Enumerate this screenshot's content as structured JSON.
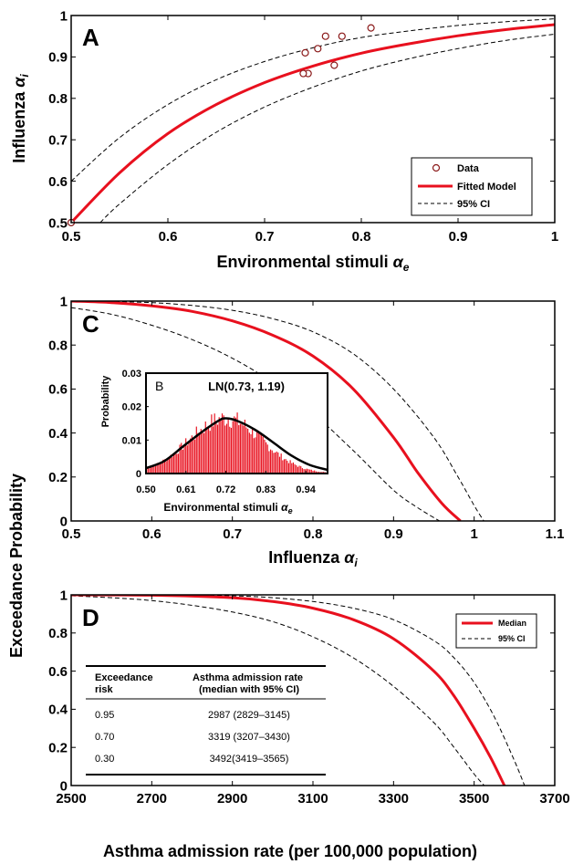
{
  "chart_data": [
    {
      "panel": "A",
      "type": "line",
      "xlabel": "Environmental stimuli",
      "xlabel_symbol": "α",
      "xlabel_sub": "e",
      "ylabel": "Influenza",
      "ylabel_symbol": "α",
      "ylabel_sub": "i",
      "xlim": [
        0.5,
        1
      ],
      "ylim": [
        0.5,
        1
      ],
      "xticks": [
        0.5,
        0.6,
        0.7,
        0.8,
        0.9,
        1
      ],
      "yticks": [
        0.5,
        0.6,
        0.7,
        0.8,
        0.9,
        1
      ],
      "xtick_labels": [
        "0.5",
        "0.6",
        "0.7",
        "0.8",
        "0.9",
        "1"
      ],
      "ytick_labels": [
        "0.5",
        "0.6",
        "0.7",
        "0.8",
        "0.9",
        "1"
      ],
      "legend": [
        "Data",
        "Fitted Model",
        "95% CI"
      ],
      "legend_position": "bottom-right",
      "scatter": {
        "name": "Data",
        "x": [
          0.5,
          0.742,
          0.745,
          0.755,
          0.763,
          0.74,
          0.772,
          0.78,
          0.81
        ],
        "y": [
          0.5,
          0.91,
          0.86,
          0.92,
          0.95,
          0.86,
          0.88,
          0.95,
          0.97
        ]
      },
      "series": [
        {
          "name": "Fitted Model",
          "style": "solid-red",
          "x": [
            0.5,
            0.55,
            0.6,
            0.65,
            0.7,
            0.75,
            0.8,
            0.85,
            0.9,
            0.95,
            1.0
          ],
          "y": [
            0.5,
            0.62,
            0.715,
            0.785,
            0.838,
            0.878,
            0.909,
            0.932,
            0.951,
            0.966,
            0.978
          ]
        },
        {
          "name": "95% CI upper",
          "style": "dashed-black",
          "x": [
            0.5,
            0.55,
            0.6,
            0.65,
            0.7,
            0.75,
            0.8,
            0.85,
            0.9,
            0.95,
            1.0
          ],
          "y": [
            0.6,
            0.705,
            0.785,
            0.845,
            0.889,
            0.922,
            0.947,
            0.963,
            0.976,
            0.985,
            0.992
          ]
        },
        {
          "name": "95% CI lower",
          "style": "dashed-black",
          "x": [
            0.53,
            0.55,
            0.6,
            0.65,
            0.7,
            0.75,
            0.8,
            0.85,
            0.9,
            0.95,
            1.0
          ],
          "y": [
            0.5,
            0.545,
            0.64,
            0.718,
            0.779,
            0.827,
            0.866,
            0.896,
            0.92,
            0.94,
            0.955
          ]
        }
      ]
    },
    {
      "panel": "C",
      "type": "line",
      "xlabel": "Influenza",
      "xlabel_symbol": "α",
      "xlabel_sub": "i",
      "ylabel": "Exceedance Probability",
      "xlim": [
        0.5,
        1.1
      ],
      "ylim": [
        0,
        1
      ],
      "xticks": [
        0.5,
        0.6,
        0.7,
        0.8,
        0.9,
        1.0,
        1.1
      ],
      "xtick_labels": [
        "0.5",
        "0.6",
        "0.7",
        "0.8",
        "0.9",
        "1",
        "1.1"
      ],
      "yticks": [
        0,
        0.2,
        0.4,
        0.6,
        0.8,
        1
      ],
      "ytick_labels": [
        "0",
        "0.2",
        "0.4",
        "0.6",
        "0.8",
        "1"
      ],
      "series": [
        {
          "name": "Median",
          "style": "solid-red",
          "x": [
            0.5,
            0.55,
            0.6,
            0.65,
            0.7,
            0.75,
            0.8,
            0.85,
            0.9,
            0.93,
            0.96,
            0.983
          ],
          "y": [
            1.0,
            0.993,
            0.978,
            0.953,
            0.91,
            0.845,
            0.75,
            0.6,
            0.38,
            0.22,
            0.08,
            0.0
          ]
        },
        {
          "name": "95% CI upper",
          "style": "dashed-black",
          "x": [
            0.5,
            0.55,
            0.6,
            0.65,
            0.7,
            0.75,
            0.8,
            0.85,
            0.9,
            0.95,
            0.98,
            1.0,
            1.012
          ],
          "y": [
            1.0,
            0.998,
            0.993,
            0.98,
            0.958,
            0.92,
            0.86,
            0.76,
            0.6,
            0.38,
            0.2,
            0.07,
            0.0
          ]
        },
        {
          "name": "95% CI lower",
          "style": "dashed-black",
          "x": [
            0.5,
            0.55,
            0.6,
            0.65,
            0.7,
            0.75,
            0.8,
            0.85,
            0.9,
            0.93,
            0.957
          ],
          "y": [
            0.97,
            0.94,
            0.89,
            0.825,
            0.74,
            0.63,
            0.49,
            0.32,
            0.14,
            0.06,
            0.0
          ]
        }
      ]
    },
    {
      "panel": "B",
      "type": "bar",
      "inset": true,
      "label": "LN(0.73, 1.19)",
      "xlabel": "Environmental stimuli",
      "xlabel_symbol": "α",
      "xlabel_sub": "e",
      "ylabel": "Probability",
      "xlim": [
        0.5,
        1.0
      ],
      "ylim": [
        0,
        0.03
      ],
      "xtick_labels": [
        "0.50",
        "0.61",
        "0.72",
        "0.83",
        "0.94"
      ],
      "xticks": [
        0.5,
        0.61,
        0.72,
        0.83,
        0.94
      ],
      "yticks": [
        0,
        0.01,
        0.02,
        0.03
      ],
      "ytick_labels": [
        "0",
        "0.01",
        "0.02",
        "0.03"
      ],
      "histogram_center": 0.72,
      "histogram_peak": 0.0165,
      "histogram_sd": 0.1,
      "curve": {
        "name": "LN(0.73, 1.19)",
        "x": [
          0.5,
          0.55,
          0.6,
          0.65,
          0.7,
          0.72,
          0.75,
          0.8,
          0.85,
          0.9,
          0.95,
          1.0
        ],
        "y": [
          0.0016,
          0.0037,
          0.0079,
          0.0121,
          0.0158,
          0.0165,
          0.0158,
          0.0131,
          0.0093,
          0.0054,
          0.0026,
          0.0011
        ]
      }
    },
    {
      "panel": "D",
      "type": "line",
      "xlabel": "Asthma admission rate (per 100,000 population)",
      "ylabel": "Exceedance Probability",
      "xlim": [
        2500,
        3700
      ],
      "ylim": [
        0,
        1
      ],
      "xticks": [
        2500,
        2700,
        2900,
        3100,
        3300,
        3500,
        3700
      ],
      "xtick_labels": [
        "2500",
        "2700",
        "2900",
        "3100",
        "3300",
        "3500",
        "3700"
      ],
      "yticks": [
        0,
        0.2,
        0.4,
        0.6,
        0.8,
        1
      ],
      "ytick_labels": [
        "0",
        "0.2",
        "0.4",
        "0.6",
        "0.8",
        "1"
      ],
      "legend": [
        "Median",
        "95% CI"
      ],
      "legend_position": "top-right",
      "series": [
        {
          "name": "Median",
          "style": "solid-red",
          "x": [
            2500,
            2700,
            2900,
            3000,
            3100,
            3200,
            3300,
            3400,
            3450,
            3500,
            3540,
            3575
          ],
          "y": [
            1.0,
            0.998,
            0.985,
            0.965,
            0.93,
            0.87,
            0.77,
            0.6,
            0.47,
            0.3,
            0.15,
            0.0
          ]
        },
        {
          "name": "95% CI upper",
          "style": "dashed-black",
          "x": [
            2500,
            2700,
            2900,
            3000,
            3100,
            3200,
            3300,
            3400,
            3450,
            3500,
            3550,
            3600,
            3625
          ],
          "y": [
            1.0,
            1.0,
            0.995,
            0.985,
            0.965,
            0.93,
            0.87,
            0.76,
            0.67,
            0.54,
            0.36,
            0.13,
            0.0
          ]
        },
        {
          "name": "95% CI lower",
          "style": "dashed-black",
          "x": [
            2500,
            2600,
            2700,
            2800,
            2900,
            3000,
            3100,
            3200,
            3300,
            3400,
            3450,
            3500,
            3525
          ],
          "y": [
            0.995,
            0.985,
            0.97,
            0.945,
            0.91,
            0.86,
            0.78,
            0.67,
            0.52,
            0.33,
            0.2,
            0.06,
            0.0
          ]
        }
      ],
      "table": {
        "headers": [
          [
            "Exceedance",
            "risk"
          ],
          [
            "Asthma admission rate",
            "(median with 95% CI)"
          ]
        ],
        "rows": [
          [
            "0.95",
            "2987 (2829–3145)"
          ],
          [
            "0.70",
            "3319 (3207–3430)"
          ],
          [
            "0.30",
            "3492(3419–3565)"
          ]
        ]
      }
    }
  ]
}
